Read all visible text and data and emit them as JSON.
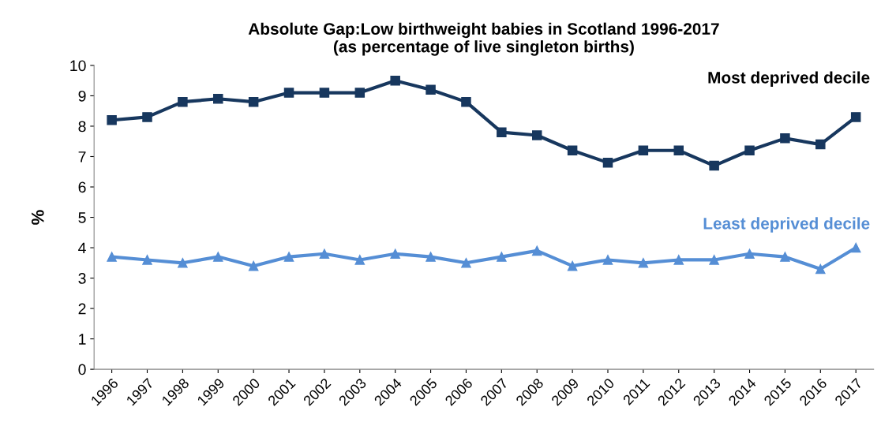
{
  "chart_data": {
    "type": "line",
    "title": "Absolute Gap:Low birthweight babies in Scotland 1996-2017\n(as percentage of live singleton births)",
    "ylabel": "%",
    "categories": [
      "1996",
      "1997",
      "1998",
      "1999",
      "2000",
      "2001",
      "2002",
      "2003",
      "2004",
      "2005",
      "2006",
      "2007",
      "2008",
      "2009",
      "2010",
      "2011",
      "2012",
      "2013",
      "2014",
      "2015",
      "2016",
      "2017"
    ],
    "series": [
      {
        "name": "Most deprived decile",
        "color": "#17375e",
        "marker": "square",
        "values": [
          8.2,
          8.3,
          8.8,
          8.9,
          8.8,
          9.1,
          9.1,
          9.1,
          9.5,
          9.2,
          8.8,
          7.8,
          7.7,
          7.2,
          6.8,
          7.2,
          7.2,
          6.7,
          7.2,
          7.6,
          7.4,
          8.3
        ]
      },
      {
        "name": "Least deprived decile",
        "color": "#558ed5",
        "marker": "triangle",
        "values": [
          3.7,
          3.6,
          3.5,
          3.7,
          3.4,
          3.7,
          3.8,
          3.6,
          3.8,
          3.7,
          3.5,
          3.7,
          3.9,
          3.4,
          3.6,
          3.5,
          3.6,
          3.6,
          3.8,
          3.7,
          3.3,
          4.0
        ]
      }
    ],
    "ylim": [
      0,
      10
    ],
    "yticks": [
      0,
      1,
      2,
      3,
      4,
      5,
      6,
      7,
      8,
      9,
      10
    ],
    "grid": false,
    "legend": false,
    "line_style": "solid"
  }
}
